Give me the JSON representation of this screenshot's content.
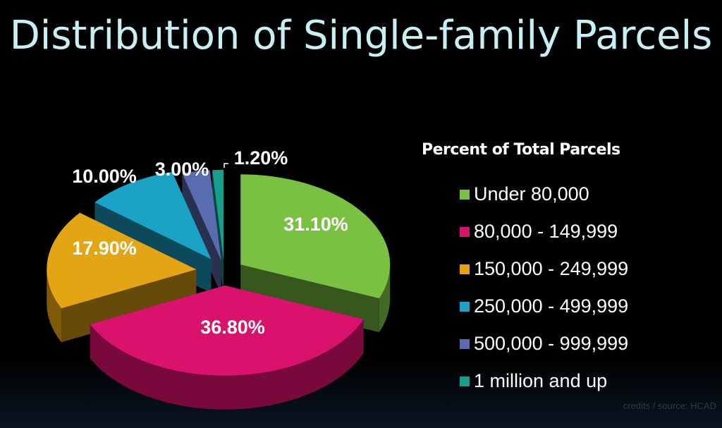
{
  "chart_data": {
    "type": "pie",
    "title": "Distribution of Single-family Parcels",
    "legend_title": "Percent of Total Parcels",
    "legend_position": "right",
    "style": "3d-exploded",
    "slices": [
      {
        "category": "Under 80,000",
        "value": 31.1,
        "label": "31.10%",
        "color": "#7ac143"
      },
      {
        "category": "80,000 - 149,999",
        "value": 36.8,
        "label": "36.80%",
        "color": "#d9136c"
      },
      {
        "category": "150,000 - 249,999",
        "value": 17.9,
        "label": "17.90%",
        "color": "#e3a514"
      },
      {
        "category": "250,000 - 499,999",
        "value": 10.0,
        "label": "10.00%",
        "color": "#1aa3c7"
      },
      {
        "category": "500,000 - 999,999",
        "value": 3.0,
        "label": "3.00%",
        "color": "#5a6cb0"
      },
      {
        "category": "1 million and up",
        "value": 1.2,
        "label": "1.20%",
        "color": "#1a9e8c"
      }
    ]
  },
  "credits": "credits / source: HCAD"
}
